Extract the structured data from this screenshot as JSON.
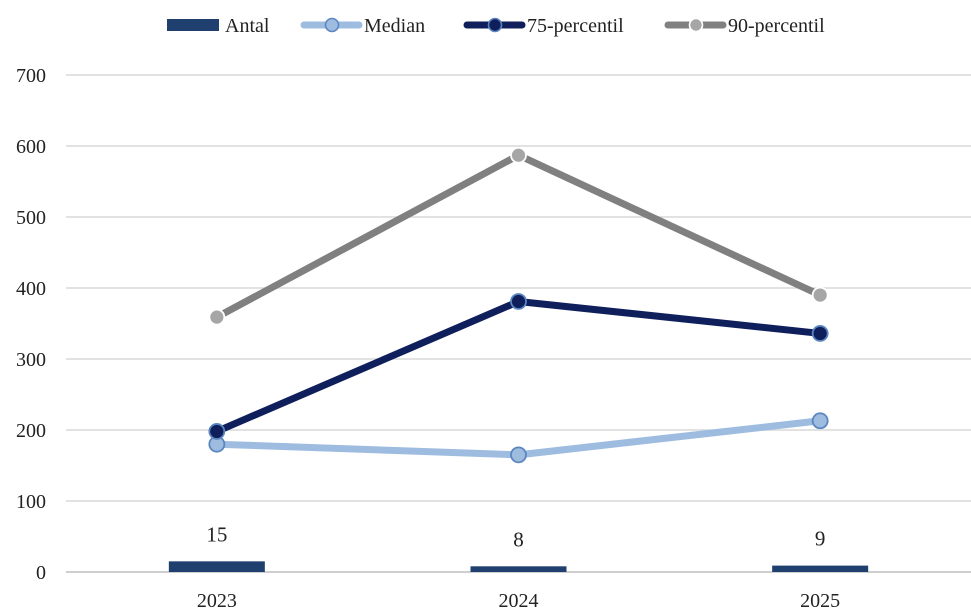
{
  "chart_data": {
    "type": "bar",
    "categories": [
      "2023",
      "2024",
      "2025"
    ],
    "ylim": [
      0,
      700
    ],
    "yticks": [
      0,
      100,
      200,
      300,
      400,
      500,
      600,
      700
    ],
    "grid": true,
    "legend_position": "top",
    "bars": {
      "name": "Antal",
      "values": [
        15,
        8,
        9
      ],
      "data_labels": [
        "15",
        "8",
        "9"
      ],
      "color": "#1f3f6e"
    },
    "series": [
      {
        "name": "Median",
        "values": [
          180,
          165,
          213
        ],
        "color": "#9dbce0",
        "marker_fill": "#9dbce0",
        "marker_stroke": "#5b86bf"
      },
      {
        "name": "75-percentil",
        "values": [
          198,
          381,
          336
        ],
        "color": "#0f1f5c",
        "marker_fill": "#0f1f5c",
        "marker_stroke": "#5b86bf"
      },
      {
        "name": "90-percentil",
        "values": [
          359,
          587,
          390
        ],
        "color": "#808080",
        "marker_fill": "#a6a6a6",
        "marker_stroke": "#ffffff"
      }
    ]
  }
}
